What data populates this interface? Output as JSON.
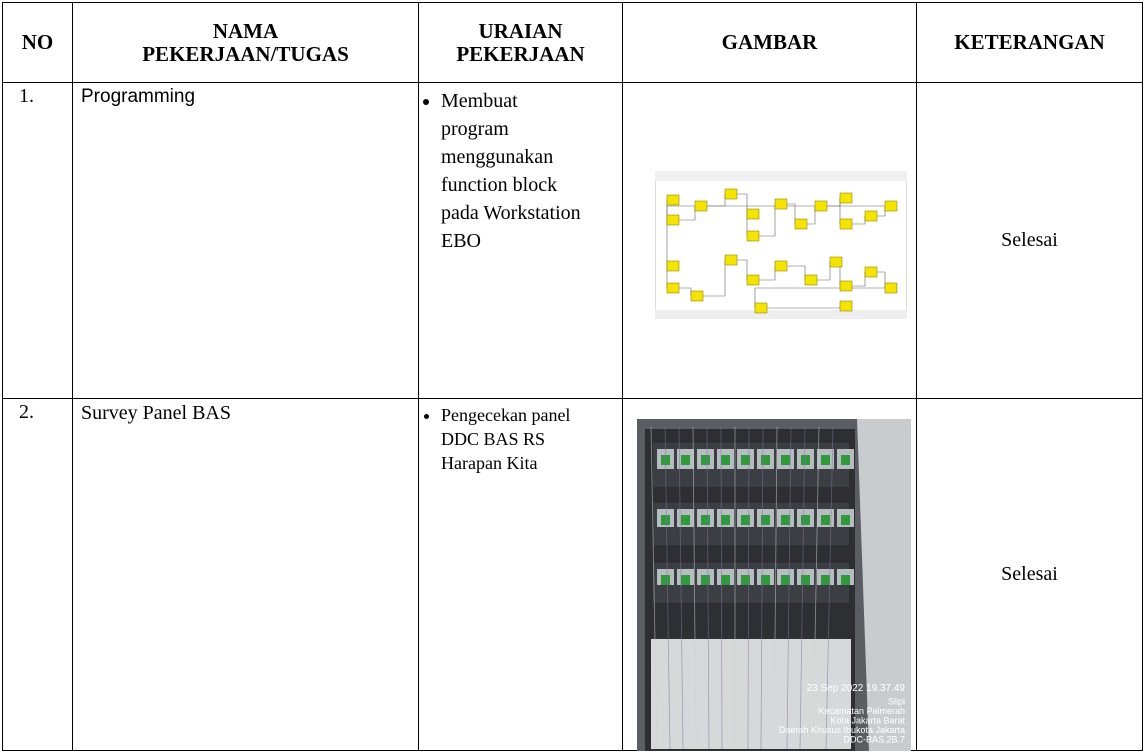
{
  "table": {
    "header": [
      [
        "NO"
      ],
      [
        "NAMA",
        "PEKERJAAN/TUGAS"
      ],
      [
        "URAIAN",
        "PEKERJAAN"
      ],
      [
        "GAMBAR"
      ],
      [
        "KETERANGAN"
      ]
    ],
    "rows": [
      {
        "no": "1.",
        "task": "Programming",
        "description": "Membuat program menggunakan function block pada Workstation EBO",
        "status": "Selesai"
      },
      {
        "no": "2.",
        "task": "Survey Panel BAS",
        "description": "Pengecekan panel DDC BAS RS Harapan Kita",
        "status": "Selesai",
        "photo_stamp": [
          "23 Sep 2022 19.37.49",
          "Slipi",
          "Kecamatan Palmerah",
          "Kota Jakarta Barat",
          "Daerah Khusus Ibukota Jakarta",
          "DDC-BAS.2B.7"
        ]
      }
    ]
  }
}
